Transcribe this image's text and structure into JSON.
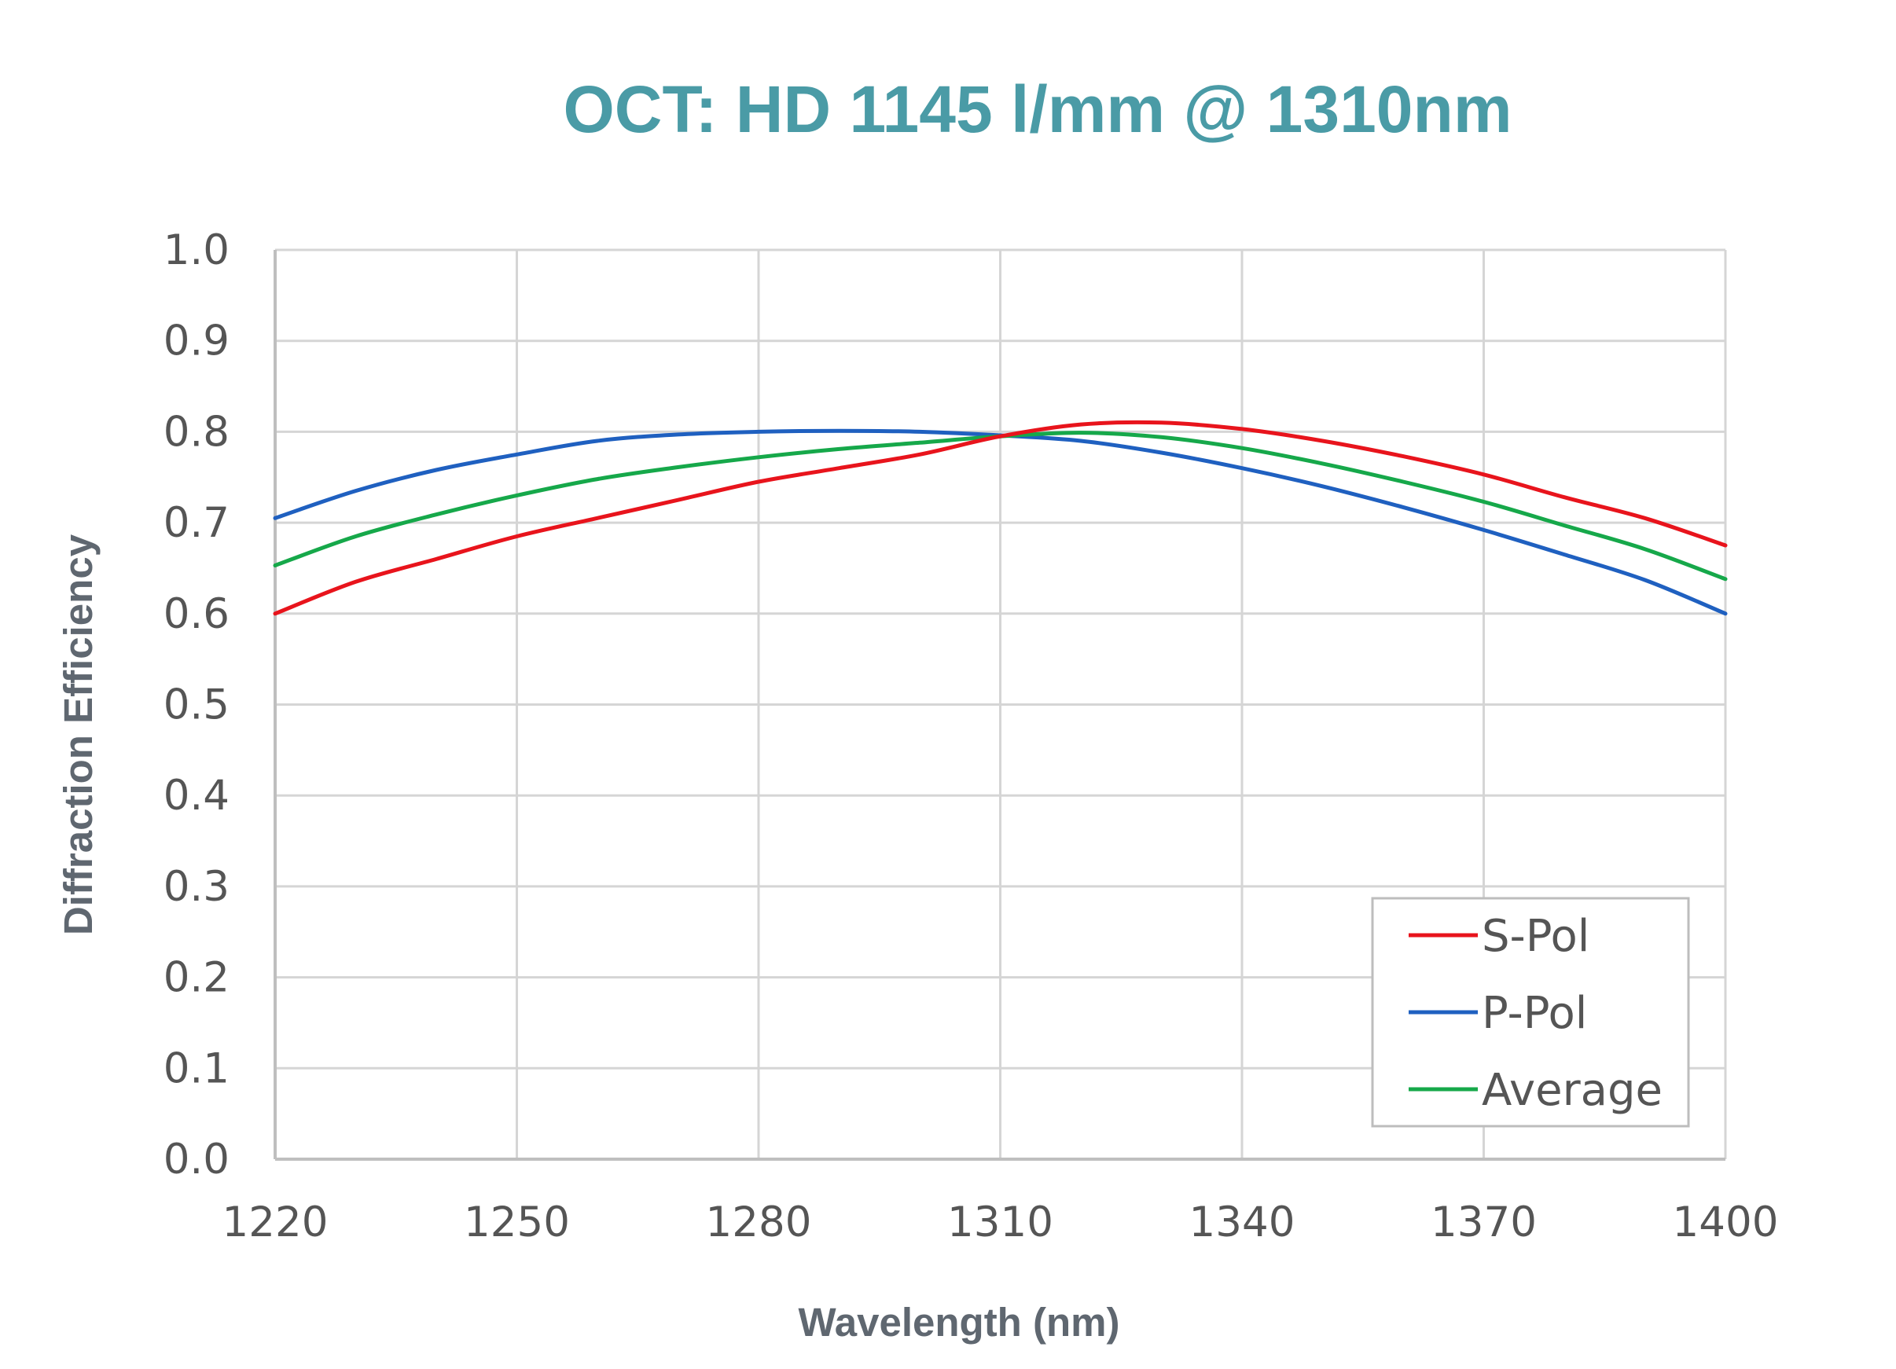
{
  "colors": {
    "title": "#4a9ba6",
    "s_pol": "#e8141c",
    "p_pol": "#1f60c0",
    "average": "#16a84a",
    "grid": "#d5d5d5",
    "axis_text": "#555555",
    "axis_title": "#5f6770"
  },
  "chart_data": {
    "type": "line",
    "title": "OCT: HD 1145 l/mm @ 1310nm",
    "xlabel": "Wavelength (nm)",
    "ylabel": "Diffraction Efficiency",
    "xlim": [
      1220,
      1400
    ],
    "ylim": [
      0.0,
      1.0
    ],
    "grid": true,
    "legend_position": "bottom-right",
    "x_ticks": [
      "1220",
      "1250",
      "1280",
      "1310",
      "1340",
      "1370",
      "1400"
    ],
    "y_ticks": [
      "0.0",
      "0.1",
      "0.2",
      "0.3",
      "0.4",
      "0.5",
      "0.6",
      "0.7",
      "0.8",
      "0.9",
      "1.0"
    ],
    "x": [
      1220,
      1230,
      1240,
      1250,
      1260,
      1270,
      1280,
      1290,
      1300,
      1310,
      1320,
      1330,
      1340,
      1350,
      1360,
      1370,
      1380,
      1390,
      1400
    ],
    "series": [
      {
        "name": "S-Pol",
        "color_key": "s_pol",
        "values": [
          0.6,
          0.635,
          0.66,
          0.685,
          0.705,
          0.725,
          0.745,
          0.76,
          0.775,
          0.795,
          0.808,
          0.81,
          0.803,
          0.79,
          0.773,
          0.753,
          0.728,
          0.705,
          0.675
        ]
      },
      {
        "name": "P-Pol",
        "color_key": "p_pol",
        "values": [
          0.705,
          0.735,
          0.758,
          0.775,
          0.79,
          0.797,
          0.8,
          0.801,
          0.8,
          0.796,
          0.79,
          0.777,
          0.76,
          0.74,
          0.717,
          0.692,
          0.665,
          0.637,
          0.6
        ]
      },
      {
        "name": "Average",
        "color_key": "average",
        "values": [
          0.653,
          0.685,
          0.709,
          0.73,
          0.748,
          0.761,
          0.772,
          0.781,
          0.788,
          0.795,
          0.799,
          0.794,
          0.782,
          0.765,
          0.745,
          0.723,
          0.697,
          0.671,
          0.638
        ]
      }
    ]
  }
}
